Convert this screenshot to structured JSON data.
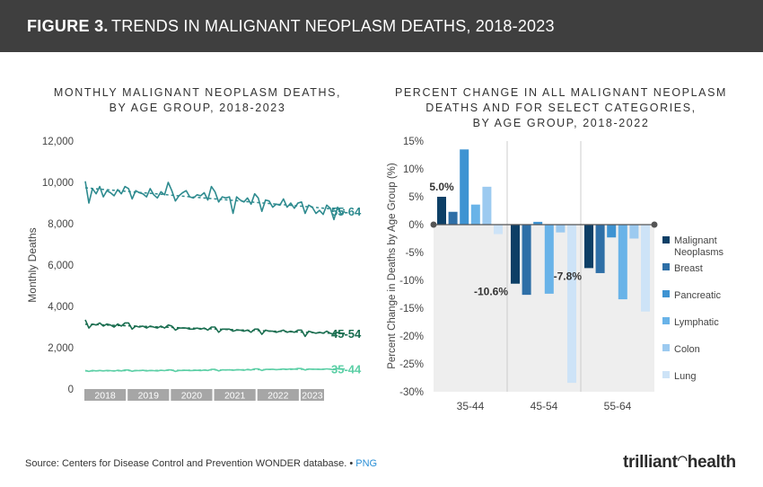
{
  "header": {
    "figure": "FIGURE 3.",
    "title": "TRENDS IN MALIGNANT NEOPLASM DEATHS, 2018-2023"
  },
  "left_title": [
    "MONTHLY MALIGNANT NEOPLASM DEATHS,",
    "BY AGE GROUP, 2018-2023"
  ],
  "right_title": [
    "PERCENT CHANGE IN ALL MALIGNANT NEOPLASM",
    "DEATHS AND FOR SELECT CATEGORIES,",
    "BY AGE GROUP, 2018-2022"
  ],
  "source": "Source: Centers for Disease Control and Prevention WONDER database. • ",
  "png_link": "PNG",
  "logo": {
    "text_a": "trilliant",
    "text_b": "health",
    "icon": "trilliant-arc-icon"
  },
  "chart_data": [
    {
      "type": "line",
      "title": "MONTHLY MALIGNANT NEOPLASM DEATHS, BY AGE GROUP, 2018-2023",
      "xlabel": "",
      "ylabel": "Monthly Deaths",
      "ylim": [
        0,
        12000
      ],
      "yticks": [
        0,
        2000,
        4000,
        6000,
        8000,
        10000,
        12000
      ],
      "ytick_labels": [
        "0",
        "2,000",
        "4,000",
        "6,000",
        "8,000",
        "10,000",
        "12,000"
      ],
      "year_labels": [
        "2018",
        "2019",
        "2020",
        "2021",
        "2022",
        "2023"
      ],
      "year_months": [
        12,
        12,
        12,
        12,
        12,
        7
      ],
      "series": [
        {
          "name": "55-64",
          "color": "#2e8b8f",
          "values": [
            10050,
            9000,
            9700,
            9450,
            9800,
            9300,
            9600,
            9500,
            9350,
            9650,
            9450,
            9800,
            9700,
            9200,
            9600,
            9500,
            9450,
            9300,
            9700,
            9400,
            9250,
            9550,
            9400,
            10000,
            9600,
            9100,
            9350,
            9500,
            9600,
            9300,
            9250,
            9400,
            9350,
            9500,
            9150,
            9800,
            9550,
            9050,
            9300,
            9250,
            9300,
            8500,
            9300,
            9150,
            9050,
            9250,
            8950,
            9450,
            9250,
            8600,
            9150,
            9100,
            8800,
            8950,
            8900,
            9200,
            8800,
            9000,
            8750,
            9000,
            9050,
            8500,
            8900,
            8800,
            8500,
            8650,
            8450,
            8900,
            8750,
            8200,
            8800,
            8450,
            8600
          ]
        },
        {
          "name": "45-54",
          "color": "#1a6e50",
          "values": [
            3350,
            2950,
            3150,
            3100,
            3200,
            3050,
            3150,
            3100,
            3000,
            3150,
            3050,
            3200,
            3200,
            2900,
            3050,
            3000,
            3050,
            2950,
            3050,
            3000,
            2950,
            3050,
            2950,
            3100,
            3050,
            2850,
            2950,
            2950,
            2950,
            2900,
            2900,
            2950,
            2900,
            2950,
            2850,
            3000,
            3000,
            2750,
            2900,
            2900,
            2900,
            2800,
            2850,
            2850,
            2800,
            2850,
            2750,
            2900,
            2900,
            2650,
            2850,
            2800,
            2800,
            2750,
            2800,
            2850,
            2750,
            2800,
            2750,
            2850,
            2850,
            2550,
            2800,
            2750,
            2700,
            2750,
            2700,
            2800,
            2700,
            2650,
            2750,
            2700,
            2700
          ]
        },
        {
          "name": "35-44",
          "color": "#5ccfa6",
          "values": [
            900,
            850,
            900,
            880,
            900,
            880,
            900,
            890,
            870,
            910,
            880,
            920,
            920,
            860,
            900,
            890,
            910,
            880,
            900,
            890,
            880,
            910,
            890,
            930,
            920,
            850,
            900,
            900,
            910,
            890,
            900,
            910,
            890,
            920,
            900,
            950,
            950,
            880,
            930,
            920,
            930,
            910,
            930,
            930,
            910,
            950,
            920,
            980,
            980,
            900,
            950,
            950,
            960,
            940,
            950,
            970,
            950,
            980,
            960,
            1000,
            990,
            920,
            970,
            960,
            960,
            950,
            950,
            980,
            960,
            940,
            990,
            960,
            980
          ]
        }
      ]
    },
    {
      "type": "bar",
      "title": "PERCENT CHANGE IN ALL MALIGNANT NEOPLASM DEATHS AND FOR SELECT CATEGORIES, BY AGE GROUP, 2018-2022",
      "xlabel": "",
      "ylabel": "Percent Change in Deaths by Age Group (%)",
      "ylim": [
        -30,
        15
      ],
      "yticks": [
        15,
        10,
        5,
        0,
        -5,
        -10,
        -15,
        -20,
        -25,
        -30
      ],
      "ytick_labels": [
        "15%",
        "10%",
        "5%",
        "0%",
        "-5%",
        "-10%",
        "-15%",
        "-20%",
        "-25%",
        "-30%"
      ],
      "categories": [
        "35-44",
        "45-54",
        "55-64"
      ],
      "series": [
        {
          "name": "Malignant Neoplasms",
          "color": "#0d3f66",
          "values": [
            5.0,
            -10.6,
            -7.8
          ]
        },
        {
          "name": "Breast",
          "color": "#2e6fa7",
          "values": [
            2.3,
            -12.6,
            -8.7
          ]
        },
        {
          "name": "Pancreatic",
          "color": "#3e93d2",
          "values": [
            13.5,
            0.5,
            -2.3
          ]
        },
        {
          "name": "Lymphatic",
          "color": "#69b3e8",
          "values": [
            3.6,
            -12.4,
            -13.4
          ]
        },
        {
          "name": "Colon",
          "color": "#9ccaf0",
          "values": [
            6.8,
            -1.4,
            -2.5
          ]
        },
        {
          "name": "Lung",
          "color": "#cde3f7",
          "values": [
            -1.7,
            -28.4,
            -15.6
          ]
        }
      ],
      "data_labels": [
        "5.0%",
        "-10.6%",
        "-7.8%"
      ]
    }
  ]
}
